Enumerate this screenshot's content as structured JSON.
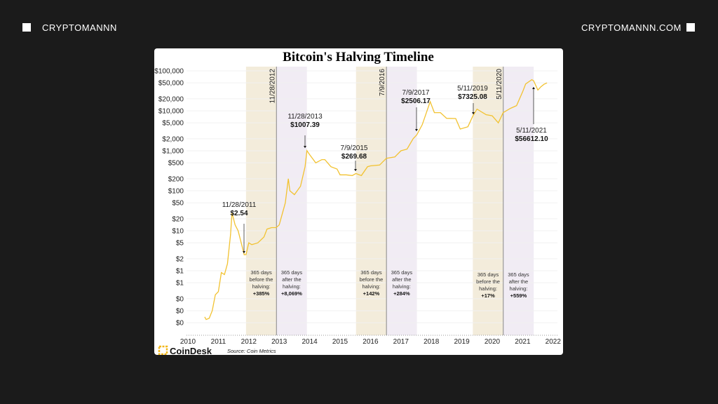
{
  "header": {
    "left_brand": "CRYPTOMANNN",
    "right_brand": "CRYPTOMANNN.COM"
  },
  "chart_data": {
    "type": "line",
    "title": "Bitcoin's Halving Timeline",
    "y_scale": "log",
    "ylim": [
      0.05,
      100000
    ],
    "xlim": [
      2010,
      2022
    ],
    "y_ticks": [
      {
        "value": 100000,
        "label": "$100,000"
      },
      {
        "value": 50000,
        "label": "$50,000"
      },
      {
        "value": 20000,
        "label": "$20,000"
      },
      {
        "value": 10000,
        "label": "$10,000"
      },
      {
        "value": 5000,
        "label": "$5,000"
      },
      {
        "value": 2000,
        "label": "$2,000"
      },
      {
        "value": 1000,
        "label": "$1,000"
      },
      {
        "value": 500,
        "label": "$500"
      },
      {
        "value": 200,
        "label": "$200"
      },
      {
        "value": 100,
        "label": "$100"
      },
      {
        "value": 50,
        "label": "$50"
      },
      {
        "value": 20,
        "label": "$20"
      },
      {
        "value": 10,
        "label": "$10"
      },
      {
        "value": 5,
        "label": "$5"
      },
      {
        "value": 2,
        "label": "$2"
      },
      {
        "value": 1,
        "label": "$1"
      },
      {
        "value": 0.5,
        "label": "$1"
      },
      {
        "value": 0.2,
        "label": "$0"
      },
      {
        "value": 0.1,
        "label": "$0"
      },
      {
        "value": 0.05,
        "label": "$0"
      }
    ],
    "x_ticks": [
      "2010",
      "2011",
      "2012",
      "2013",
      "2014",
      "2015",
      "2016",
      "2017",
      "2018",
      "2019",
      "2020",
      "2021",
      "2022"
    ],
    "grid": true,
    "line_color": "#f2c230",
    "before_band_color": "#f3ecdb",
    "after_band_color": "#f1ecf4",
    "series": [
      {
        "x": [
          2010.55,
          2010.6,
          2010.7,
          2010.8,
          2010.9,
          2011.0,
          2011.1,
          2011.2,
          2011.3,
          2011.4,
          2011.45,
          2011.55,
          2011.65,
          2011.75,
          2011.85,
          2011.91,
          2012.0,
          2012.1,
          2012.3,
          2012.5,
          2012.6,
          2012.75,
          2012.9,
          2013.0,
          2013.2,
          2013.3,
          2013.35,
          2013.5,
          2013.7,
          2013.85,
          2013.91,
          2014.0,
          2014.2,
          2014.4,
          2014.5,
          2014.7,
          2014.9,
          2015.0,
          2015.2,
          2015.4,
          2015.52,
          2015.7,
          2015.9,
          2016.0,
          2016.3,
          2016.52,
          2016.8,
          2017.0,
          2017.2,
          2017.4,
          2017.52,
          2017.7,
          2017.96,
          2018.1,
          2018.3,
          2018.5,
          2018.8,
          2018.95,
          2019.2,
          2019.36,
          2019.5,
          2019.8,
          2020.0,
          2020.2,
          2020.36,
          2020.6,
          2020.8,
          2021.0,
          2021.1,
          2021.3,
          2021.36,
          2021.5,
          2021.6,
          2021.7,
          2021.8
        ],
        "y": [
          0.07,
          0.06,
          0.065,
          0.1,
          0.25,
          0.3,
          0.9,
          0.8,
          1.5,
          8,
          28,
          14,
          10,
          5,
          2.5,
          2.54,
          5,
          4.5,
          5,
          7,
          11,
          12,
          12,
          14,
          50,
          200,
          100,
          80,
          130,
          400,
          1007.39,
          800,
          500,
          600,
          600,
          400,
          350,
          250,
          250,
          240,
          269.68,
          240,
          400,
          420,
          440,
          650,
          700,
          1000,
          1100,
          2000,
          2506.17,
          4500,
          17000,
          9000,
          9000,
          6500,
          6400,
          3500,
          4000,
          7325.08,
          11000,
          8000,
          7500,
          5000,
          9000,
          11500,
          13500,
          30000,
          47000,
          60000,
          56612.1,
          33000,
          40000,
          46000,
          50000
        ]
      }
    ],
    "halvings": [
      "11/28/2012",
      "7/9/2016",
      "5/11/2020"
    ],
    "annotations": [
      {
        "date": "11/28/2011",
        "price": "$2.54"
      },
      {
        "date": "11/28/2013",
        "price": "$1007.39"
      },
      {
        "date": "7/9/2015",
        "price": "$269.68"
      },
      {
        "date": "7/9/2017",
        "price": "$2506.17"
      },
      {
        "date": "5/11/2019",
        "price": "$7325.08"
      },
      {
        "date": "5/11/2021",
        "price": "$56612.10"
      }
    ],
    "bands": [
      {
        "lines": [
          "365 days",
          "before the",
          "halving:"
        ],
        "change": "+385%"
      },
      {
        "lines": [
          "365 days",
          "after the",
          "halving:"
        ],
        "change": "+8,069%"
      },
      {
        "lines": [
          "365 days",
          "before the",
          "halving:"
        ],
        "change": "+142%"
      },
      {
        "lines": [
          "365 days",
          "after the",
          "halving:"
        ],
        "change": "+284%"
      },
      {
        "lines": [
          "365 days",
          "before the",
          "halving:"
        ],
        "change": "+17%"
      },
      {
        "lines": [
          "365 days",
          "after the",
          "halving:"
        ],
        "change": "+559%"
      }
    ]
  },
  "footer": {
    "logo": "CoinDesk",
    "source": "Source: Coin Metrics"
  }
}
